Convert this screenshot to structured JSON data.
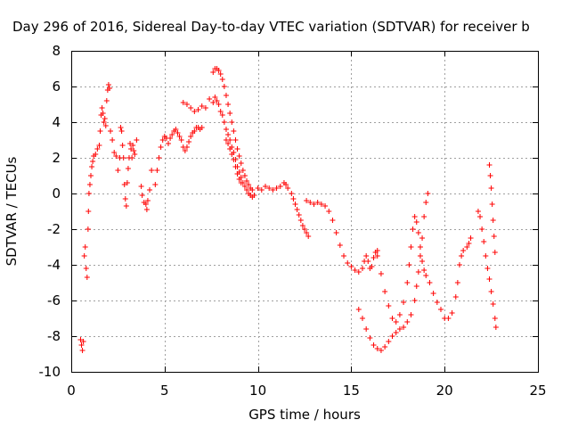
{
  "chart_data": {
    "type": "scatter",
    "title": "Day 296 of 2016, Sidereal Day-to-day VTEC variation (SDTVAR) for receiver b",
    "xlabel": "GPS time / hours",
    "ylabel": "SDTVAR / TECUs",
    "xlim": [
      0,
      25
    ],
    "ylim": [
      -10,
      8
    ],
    "xticks": [
      0,
      5,
      10,
      15,
      20,
      25
    ],
    "yticks": [
      -10,
      -8,
      -6,
      -4,
      -2,
      0,
      2,
      4,
      6,
      8
    ],
    "grid": true,
    "marker": "+",
    "series": [
      {
        "color": "#ff0000",
        "points": [
          [
            0.5,
            -8.2
          ],
          [
            0.55,
            -8.5
          ],
          [
            0.6,
            -8.8
          ],
          [
            0.65,
            -8.3
          ],
          [
            0.7,
            -3.5
          ],
          [
            0.75,
            -3.0
          ],
          [
            0.8,
            -4.2
          ],
          [
            0.85,
            -4.7
          ],
          [
            0.9,
            -2.0
          ],
          [
            0.92,
            -1.0
          ],
          [
            0.95,
            0.0
          ],
          [
            1.0,
            0.5
          ],
          [
            1.05,
            1.0
          ],
          [
            1.1,
            1.5
          ],
          [
            1.15,
            1.8
          ],
          [
            1.2,
            2.1
          ],
          [
            1.3,
            2.2
          ],
          [
            1.4,
            2.5
          ],
          [
            1.5,
            2.7
          ],
          [
            1.55,
            3.5
          ],
          [
            1.6,
            4.4
          ],
          [
            1.65,
            4.8
          ],
          [
            1.7,
            4.5
          ],
          [
            1.75,
            4.0
          ],
          [
            1.8,
            4.2
          ],
          [
            1.85,
            3.8
          ],
          [
            1.9,
            5.2
          ],
          [
            1.95,
            5.8
          ],
          [
            2.0,
            6.1
          ],
          [
            2.05,
            5.9
          ],
          [
            2.1,
            3.5
          ],
          [
            2.2,
            3.0
          ],
          [
            2.3,
            2.3
          ],
          [
            2.4,
            2.1
          ],
          [
            2.5,
            1.3
          ],
          [
            2.6,
            2.0
          ],
          [
            2.65,
            3.7
          ],
          [
            2.7,
            3.5
          ],
          [
            2.75,
            2.7
          ],
          [
            2.8,
            2.0
          ],
          [
            2.85,
            0.5
          ],
          [
            2.9,
            -0.3
          ],
          [
            2.95,
            -0.7
          ],
          [
            3.0,
            0.6
          ],
          [
            3.05,
            1.4
          ],
          [
            3.1,
            2.0
          ],
          [
            3.15,
            2.8
          ],
          [
            3.2,
            2.5
          ],
          [
            3.25,
            2.0
          ],
          [
            3.3,
            2.7
          ],
          [
            3.35,
            2.4
          ],
          [
            3.4,
            2.2
          ],
          [
            3.5,
            3.0
          ],
          [
            3.75,
            0.4
          ],
          [
            3.8,
            -0.1
          ],
          [
            3.9,
            -0.5
          ],
          [
            4.0,
            -0.6
          ],
          [
            4.05,
            -0.9
          ],
          [
            4.1,
            -0.4
          ],
          [
            4.2,
            0.2
          ],
          [
            4.3,
            1.3
          ],
          [
            4.5,
            0.5
          ],
          [
            4.6,
            1.3
          ],
          [
            4.7,
            2.0
          ],
          [
            4.8,
            2.6
          ],
          [
            4.9,
            3.0
          ],
          [
            5.0,
            3.2
          ],
          [
            5.1,
            3.1
          ],
          [
            5.2,
            2.8
          ],
          [
            5.3,
            3.1
          ],
          [
            5.4,
            3.3
          ],
          [
            5.5,
            3.5
          ],
          [
            5.6,
            3.6
          ],
          [
            5.7,
            3.4
          ],
          [
            5.8,
            3.2
          ],
          [
            5.9,
            3.0
          ],
          [
            6.0,
            2.6
          ],
          [
            6.1,
            2.4
          ],
          [
            6.2,
            2.6
          ],
          [
            6.3,
            2.9
          ],
          [
            6.4,
            3.2
          ],
          [
            6.5,
            3.4
          ],
          [
            6.6,
            3.5
          ],
          [
            6.7,
            3.7
          ],
          [
            6.8,
            3.7
          ],
          [
            6.9,
            3.6
          ],
          [
            7.0,
            3.7
          ],
          [
            6.0,
            5.1
          ],
          [
            6.2,
            5.0
          ],
          [
            6.4,
            4.8
          ],
          [
            6.6,
            4.6
          ],
          [
            6.8,
            4.7
          ],
          [
            7.0,
            4.9
          ],
          [
            7.2,
            4.8
          ],
          [
            7.4,
            5.3
          ],
          [
            7.6,
            5.1
          ],
          [
            7.7,
            5.4
          ],
          [
            7.8,
            5.2
          ],
          [
            7.9,
            5.0
          ],
          [
            8.0,
            4.6
          ],
          [
            8.1,
            4.4
          ],
          [
            8.2,
            4.0
          ],
          [
            8.3,
            3.6
          ],
          [
            8.4,
            3.3
          ],
          [
            8.5,
            3.0
          ],
          [
            8.6,
            2.6
          ],
          [
            8.7,
            2.3
          ],
          [
            8.8,
            1.9
          ],
          [
            8.9,
            1.5
          ],
          [
            9.0,
            1.2
          ],
          [
            9.1,
            0.9
          ],
          [
            9.2,
            0.6
          ],
          [
            9.3,
            0.4
          ],
          [
            9.4,
            0.2
          ],
          [
            9.5,
            0.0
          ],
          [
            9.6,
            -0.1
          ],
          [
            9.7,
            -0.2
          ],
          [
            9.8,
            -0.1
          ],
          [
            7.6,
            6.8
          ],
          [
            7.7,
            7.0
          ],
          [
            7.8,
            7.0
          ],
          [
            7.9,
            6.9
          ],
          [
            8.0,
            6.7
          ],
          [
            8.1,
            6.4
          ],
          [
            8.2,
            6.0
          ],
          [
            8.3,
            5.5
          ],
          [
            8.4,
            5.0
          ],
          [
            8.5,
            4.5
          ],
          [
            8.6,
            4.0
          ],
          [
            8.7,
            3.5
          ],
          [
            8.8,
            3.0
          ],
          [
            8.9,
            2.5
          ],
          [
            9.0,
            2.1
          ],
          [
            9.1,
            1.7
          ],
          [
            9.2,
            1.3
          ],
          [
            9.3,
            1.0
          ],
          [
            9.4,
            0.7
          ],
          [
            9.5,
            0.5
          ],
          [
            9.6,
            0.3
          ],
          [
            9.7,
            0.2
          ],
          [
            8.3,
            3.0
          ],
          [
            8.4,
            2.8
          ],
          [
            8.5,
            2.5
          ],
          [
            8.6,
            2.2
          ],
          [
            8.7,
            1.9
          ],
          [
            8.8,
            1.5
          ],
          [
            8.9,
            1.1
          ],
          [
            9.0,
            0.8
          ],
          [
            9.1,
            0.6
          ],
          [
            10.0,
            0.3
          ],
          [
            10.2,
            0.2
          ],
          [
            10.4,
            0.4
          ],
          [
            10.6,
            0.3
          ],
          [
            10.8,
            0.2
          ],
          [
            11.0,
            0.3
          ],
          [
            11.2,
            0.4
          ],
          [
            11.4,
            0.6
          ],
          [
            11.5,
            0.5
          ],
          [
            11.6,
            0.3
          ],
          [
            11.8,
            0.0
          ],
          [
            11.9,
            -0.3
          ],
          [
            12.0,
            -0.6
          ],
          [
            12.1,
            -0.9
          ],
          [
            12.2,
            -1.2
          ],
          [
            12.3,
            -1.5
          ],
          [
            12.4,
            -1.8
          ],
          [
            12.5,
            -2.0
          ],
          [
            12.6,
            -2.2
          ],
          [
            12.7,
            -2.4
          ],
          [
            12.6,
            -0.4
          ],
          [
            12.8,
            -0.5
          ],
          [
            13.0,
            -0.6
          ],
          [
            13.2,
            -0.5
          ],
          [
            13.4,
            -0.6
          ],
          [
            13.6,
            -0.7
          ],
          [
            13.8,
            -1.0
          ],
          [
            14.0,
            -1.5
          ],
          [
            14.2,
            -2.2
          ],
          [
            14.4,
            -2.9
          ],
          [
            14.6,
            -3.5
          ],
          [
            14.8,
            -3.9
          ],
          [
            15.0,
            -4.1
          ],
          [
            15.2,
            -4.3
          ],
          [
            15.4,
            -4.4
          ],
          [
            15.6,
            -4.2
          ],
          [
            15.7,
            -3.8
          ],
          [
            15.8,
            -3.5
          ],
          [
            15.9,
            -3.8
          ],
          [
            16.0,
            -4.2
          ],
          [
            16.1,
            -4.1
          ],
          [
            16.2,
            -3.6
          ],
          [
            16.3,
            -3.3
          ],
          [
            16.4,
            -3.2
          ],
          [
            15.4,
            -6.5
          ],
          [
            15.6,
            -7.0
          ],
          [
            15.8,
            -7.6
          ],
          [
            16.0,
            -8.1
          ],
          [
            16.2,
            -8.5
          ],
          [
            16.4,
            -8.7
          ],
          [
            16.6,
            -8.8
          ],
          [
            16.8,
            -8.6
          ],
          [
            17.0,
            -8.3
          ],
          [
            17.2,
            -8.0
          ],
          [
            17.4,
            -7.8
          ],
          [
            17.6,
            -7.6
          ],
          [
            17.8,
            -7.5
          ],
          [
            18.0,
            -7.2
          ],
          [
            18.2,
            -6.8
          ],
          [
            18.4,
            -6.0
          ],
          [
            18.5,
            -5.2
          ],
          [
            18.6,
            -4.4
          ],
          [
            18.7,
            -3.5
          ],
          [
            18.8,
            -2.5
          ],
          [
            18.9,
            -1.3
          ],
          [
            19.0,
            -0.5
          ],
          [
            19.1,
            0.0
          ],
          [
            16.4,
            -3.5
          ],
          [
            16.6,
            -4.5
          ],
          [
            16.8,
            -5.5
          ],
          [
            17.0,
            -6.3
          ],
          [
            17.2,
            -7.0
          ],
          [
            17.4,
            -7.2
          ],
          [
            17.6,
            -6.8
          ],
          [
            17.8,
            -6.1
          ],
          [
            18.0,
            -5.0
          ],
          [
            18.1,
            -4.0
          ],
          [
            18.2,
            -3.0
          ],
          [
            18.3,
            -2.0
          ],
          [
            18.4,
            -1.3
          ],
          [
            18.5,
            -1.6
          ],
          [
            18.6,
            -2.2
          ],
          [
            18.7,
            -3.0
          ],
          [
            18.8,
            -3.8
          ],
          [
            18.9,
            -4.3
          ],
          [
            19.0,
            -4.6
          ],
          [
            19.2,
            -5.0
          ],
          [
            19.4,
            -5.6
          ],
          [
            19.6,
            -6.1
          ],
          [
            19.8,
            -6.5
          ],
          [
            20.0,
            -7.0
          ],
          [
            20.2,
            -7.0
          ],
          [
            20.4,
            -6.7
          ],
          [
            20.6,
            -5.8
          ],
          [
            20.7,
            -5.0
          ],
          [
            20.8,
            -4.0
          ],
          [
            20.9,
            -3.5
          ],
          [
            21.0,
            -3.2
          ],
          [
            21.2,
            -3.0
          ],
          [
            21.3,
            -2.8
          ],
          [
            21.4,
            -2.5
          ],
          [
            21.8,
            -1.0
          ],
          [
            21.9,
            -1.3
          ],
          [
            22.0,
            -2.0
          ],
          [
            22.1,
            -2.7
          ],
          [
            22.2,
            -3.5
          ],
          [
            22.3,
            -4.2
          ],
          [
            22.4,
            -4.8
          ],
          [
            22.5,
            -5.5
          ],
          [
            22.6,
            -6.2
          ],
          [
            22.7,
            -7.0
          ],
          [
            22.75,
            -7.5
          ],
          [
            22.4,
            1.6
          ],
          [
            22.45,
            1.0
          ],
          [
            22.5,
            0.3
          ],
          [
            22.55,
            -0.6
          ],
          [
            22.6,
            -1.5
          ],
          [
            22.65,
            -2.4
          ],
          [
            22.7,
            -3.3
          ]
        ]
      }
    ]
  }
}
